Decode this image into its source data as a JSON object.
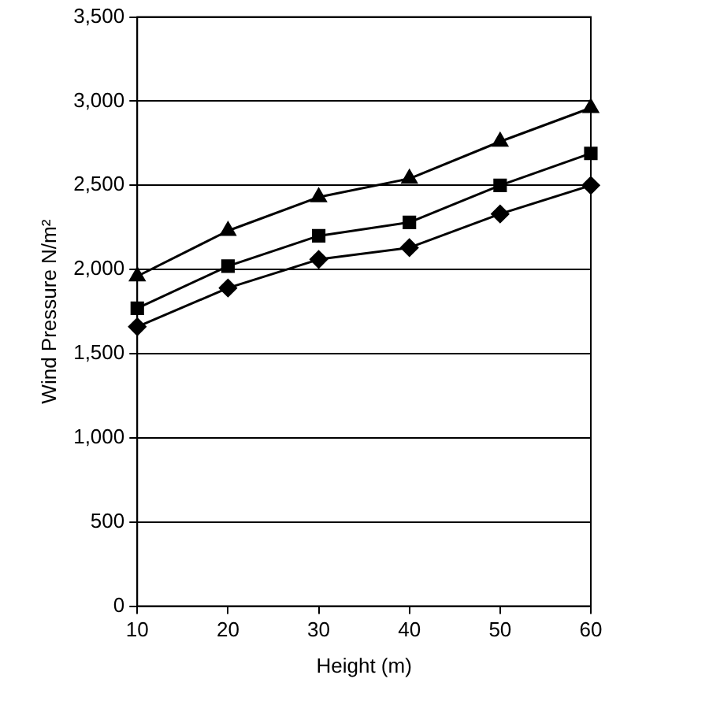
{
  "chart_data": {
    "type": "line",
    "xlabel": "Height (m)",
    "ylabel": "Wind Pressure N/m²",
    "x": [
      10,
      20,
      30,
      40,
      50,
      60
    ],
    "xlim": [
      10,
      60
    ],
    "xticks": [
      10,
      20,
      30,
      40,
      50,
      60
    ],
    "ylim": [
      0,
      3500
    ],
    "yticks": [
      {
        "value": 0,
        "label": "0"
      },
      {
        "value": 500,
        "label": "500"
      },
      {
        "value": 1000,
        "label": "1,000"
      },
      {
        "value": 1500,
        "label": "1,500"
      },
      {
        "value": 2000,
        "label": "2,000"
      },
      {
        "value": 2500,
        "label": "2,500"
      },
      {
        "value": 3000,
        "label": "3,000"
      },
      {
        "value": 3500,
        "label": "3,500"
      }
    ],
    "grid": "y",
    "legend": false,
    "line_style": "solid",
    "series": [
      {
        "color": "#000000",
        "marker": "triangle",
        "values": [
          1960,
          2230,
          2430,
          2540,
          2760,
          2960
        ]
      },
      {
        "color": "#000000",
        "marker": "square",
        "values": [
          1770,
          2020,
          2200,
          2280,
          2500,
          2690
        ]
      },
      {
        "color": "#000000",
        "marker": "diamond",
        "values": [
          1660,
          1890,
          2060,
          2130,
          2330,
          2500
        ]
      }
    ]
  }
}
